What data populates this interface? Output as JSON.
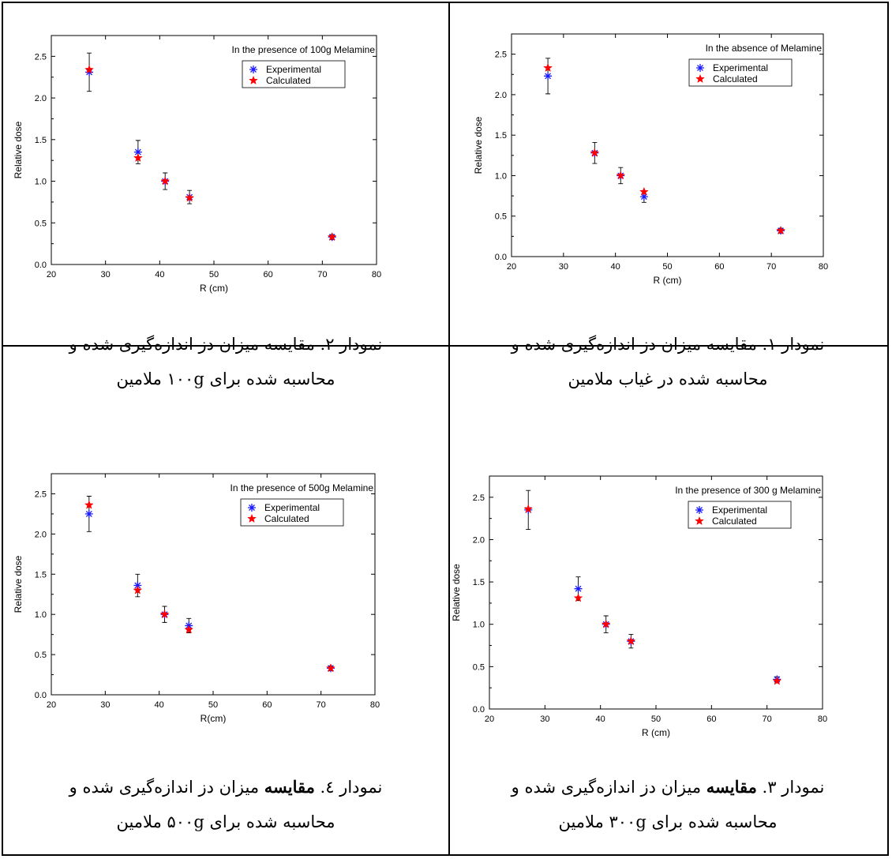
{
  "panels": [
    {
      "caption": {
        "prefix": "نمودار ۲. ",
        "bold": "",
        "line1_rest": "مقایسه میزان دز اندازه‌گیری شده و",
        "line2": "محاسبه شده برای ۱۰۰g ملامین"
      },
      "chart_data": {
        "type": "scatter",
        "title": "In the presence of 100g Melamine",
        "xlabel": "R (cm)",
        "ylabel": "Relative dose",
        "xlim": [
          20,
          80
        ],
        "ylim": [
          0,
          2.75
        ],
        "xticks": [
          20,
          30,
          40,
          50,
          60,
          70,
          80
        ],
        "yticks": [
          0.0,
          0.5,
          1.0,
          1.5,
          2.0,
          2.5
        ],
        "legend_position": "top-right",
        "series": [
          {
            "name": "Experimental",
            "marker": "asterisk",
            "color": "#1a1aff",
            "x": [
              27,
              36,
              41,
              45.5,
              71.8
            ],
            "y": [
              2.31,
              1.35,
              1.0,
              0.81,
              0.33
            ],
            "error": [
              0.23,
              0.14,
              0.1,
              0.08,
              0.03
            ]
          },
          {
            "name": "Calculated",
            "marker": "star",
            "color": "#ff0000",
            "x": [
              27,
              36,
              41,
              45.5,
              71.8
            ],
            "y": [
              2.34,
              1.28,
              1.0,
              0.8,
              0.33
            ]
          }
        ]
      }
    },
    {
      "caption": {
        "prefix": "نمودار ۱. ",
        "bold": "",
        "line1_rest": "مقایسه میزان دز اندازه‌گیری شده و",
        "line2": "محاسبه شده در غیاب ملامین"
      },
      "chart_data": {
        "type": "scatter",
        "title": "In the absence of Melamine",
        "xlabel": "R (cm)",
        "ylabel": "Relative dose",
        "xlim": [
          20,
          80
        ],
        "ylim": [
          0,
          2.75
        ],
        "xticks": [
          20,
          30,
          40,
          50,
          60,
          70,
          80
        ],
        "yticks": [
          0.0,
          0.5,
          1.0,
          1.5,
          2.0,
          2.5
        ],
        "legend_position": "top-right",
        "series": [
          {
            "name": "Experimental",
            "marker": "asterisk",
            "color": "#1a1aff",
            "x": [
              27,
              36,
              41,
              45.5,
              71.8
            ],
            "y": [
              2.23,
              1.28,
              1.0,
              0.74,
              0.32
            ],
            "error": [
              0.22,
              0.13,
              0.1,
              0.07,
              0.03
            ]
          },
          {
            "name": "Calculated",
            "marker": "star",
            "color": "#ff0000",
            "x": [
              27,
              36,
              41,
              45.5,
              71.8
            ],
            "y": [
              2.33,
              1.28,
              1.0,
              0.8,
              0.32
            ]
          }
        ]
      }
    },
    {
      "caption": {
        "prefix": "نمودار ٤. ",
        "bold": "مقایسه",
        "line1_rest": " میزان دز اندازه‌گیری شده و",
        "line2": "محاسبه شده برای ۵۰۰g ملامین"
      },
      "chart_data": {
        "type": "scatter",
        "title": "In the presence of 500g Melamine",
        "xlabel": "R(cm)",
        "ylabel": "Relative dose",
        "xlim": [
          20,
          80
        ],
        "ylim": [
          0,
          2.75
        ],
        "xticks": [
          20,
          30,
          40,
          50,
          60,
          70,
          80
        ],
        "yticks": [
          0.0,
          0.5,
          1.0,
          1.5,
          2.0,
          2.5
        ],
        "legend_position": "top-right",
        "series": [
          {
            "name": "Experimental",
            "marker": "asterisk",
            "color": "#1a1aff",
            "x": [
              27,
              36,
              41,
              45.5,
              71.8
            ],
            "y": [
              2.25,
              1.36,
              1.0,
              0.86,
              0.33
            ],
            "error": [
              0.22,
              0.14,
              0.1,
              0.09,
              0.03
            ]
          },
          {
            "name": "Calculated",
            "marker": "star",
            "color": "#ff0000",
            "x": [
              27,
              36,
              41,
              45.5,
              71.8
            ],
            "y": [
              2.36,
              1.3,
              1.0,
              0.81,
              0.33
            ]
          }
        ]
      }
    },
    {
      "caption": {
        "prefix": "نمودار ۳. ",
        "bold": "مقایسه",
        "line1_rest": " میزان دز اندازه‌گیری شده و",
        "line2": "محاسبه شده برای ۳۰۰g ملامین"
      },
      "chart_data": {
        "type": "scatter",
        "title": "In the presence of 300 g Melamine",
        "xlabel": "R (cm)",
        "ylabel": "Relative dose",
        "xlim": [
          20,
          80
        ],
        "ylim": [
          0,
          2.75
        ],
        "xticks": [
          20,
          30,
          40,
          50,
          60,
          70,
          80
        ],
        "yticks": [
          0.0,
          0.5,
          1.0,
          1.5,
          2.0,
          2.5
        ],
        "legend_position": "top-right",
        "series": [
          {
            "name": "Experimental",
            "marker": "asterisk",
            "color": "#1a1aff",
            "x": [
              27,
              36,
              41,
              45.5,
              71.8
            ],
            "y": [
              2.35,
              1.42,
              1.0,
              0.8,
              0.35
            ],
            "error": [
              0.23,
              0.14,
              0.1,
              0.08,
              0.03
            ]
          },
          {
            "name": "Calculated",
            "marker": "star",
            "color": "#ff0000",
            "x": [
              27,
              36,
              41,
              45.5,
              71.8
            ],
            "y": [
              2.36,
              1.31,
              1.0,
              0.8,
              0.33
            ]
          }
        ]
      }
    }
  ]
}
